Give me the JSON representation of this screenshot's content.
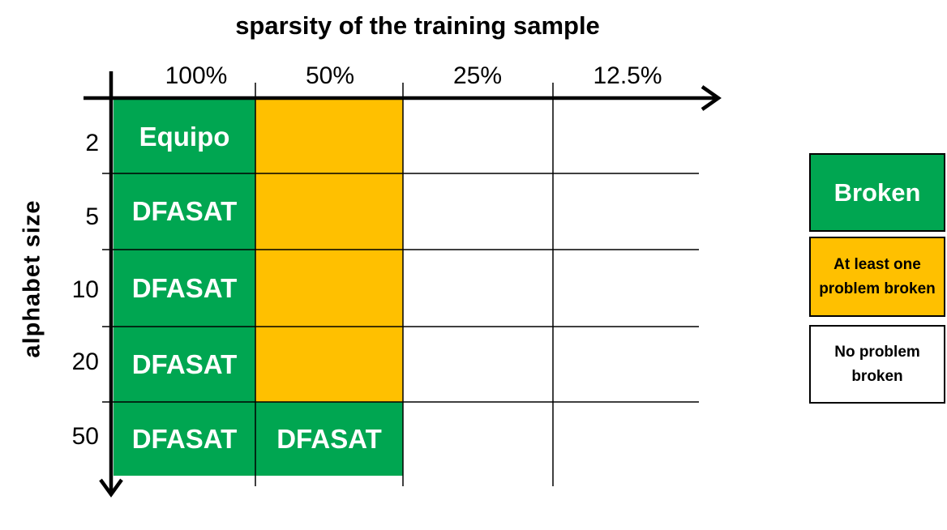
{
  "title": "sparsity of the training sample",
  "y_axis_label": "alphabet  size",
  "columns": [
    "100%",
    "50%",
    "25%",
    "12.5%"
  ],
  "rows": [
    "2",
    "5",
    "10",
    "20",
    "50"
  ],
  "cells": [
    [
      {
        "status": "broken",
        "label": "Equipo"
      },
      {
        "status": "partial",
        "label": ""
      },
      {
        "status": "none",
        "label": ""
      },
      {
        "status": "none",
        "label": ""
      }
    ],
    [
      {
        "status": "broken",
        "label": "DFASAT"
      },
      {
        "status": "partial",
        "label": ""
      },
      {
        "status": "none",
        "label": ""
      },
      {
        "status": "none",
        "label": ""
      }
    ],
    [
      {
        "status": "broken",
        "label": "DFASAT"
      },
      {
        "status": "partial",
        "label": ""
      },
      {
        "status": "none",
        "label": ""
      },
      {
        "status": "none",
        "label": ""
      }
    ],
    [
      {
        "status": "broken",
        "label": "DFASAT"
      },
      {
        "status": "partial",
        "label": ""
      },
      {
        "status": "none",
        "label": ""
      },
      {
        "status": "none",
        "label": ""
      }
    ],
    [
      {
        "status": "broken",
        "label": "DFASAT"
      },
      {
        "status": "broken",
        "label": "DFASAT"
      },
      {
        "status": "none",
        "label": ""
      },
      {
        "status": "none",
        "label": ""
      }
    ]
  ],
  "legend": {
    "broken": {
      "label": "Broken",
      "color": "#00a651"
    },
    "partial": {
      "label": "At least one problem broken",
      "color": "#ffc000"
    },
    "none": {
      "label": "No problem broken",
      "color": "#ffffff"
    }
  }
}
